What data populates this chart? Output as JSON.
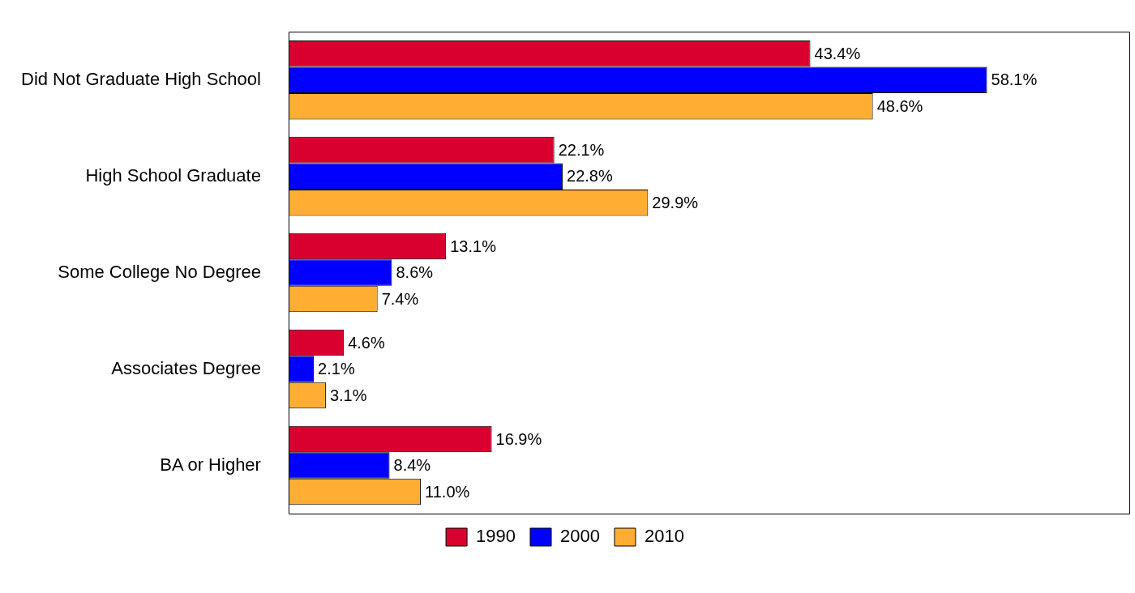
{
  "chart_data": {
    "type": "bar",
    "orientation": "horizontal",
    "categories": [
      "Did Not Graduate High School",
      "High School Graduate",
      "Some College No Degree",
      "Associates Degree",
      "BA or Higher"
    ],
    "series": [
      {
        "name": "1990",
        "color": "#d90030",
        "values": [
          43.4,
          22.1,
          13.1,
          4.6,
          16.9
        ],
        "value_labels": [
          "43.4%",
          "22.1%",
          "13.1%",
          "4.6%",
          "16.9%"
        ]
      },
      {
        "name": "2000",
        "color": "#0000ff",
        "values": [
          58.1,
          22.8,
          8.6,
          2.1,
          8.4
        ],
        "value_labels": [
          "58.1%",
          "22.8%",
          "8.6%",
          "2.1%",
          "8.4%"
        ]
      },
      {
        "name": "2010",
        "color": "#ffad33",
        "values": [
          48.6,
          29.9,
          7.4,
          3.1,
          11.0
        ],
        "value_labels": [
          "48.6%",
          "29.9%",
          "7.4%",
          "3.1%",
          "11.0%"
        ]
      }
    ],
    "legend": "bottom"
  }
}
